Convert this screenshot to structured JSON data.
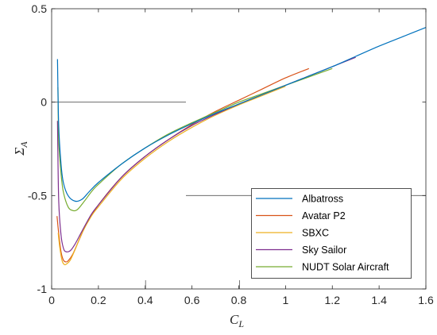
{
  "chart_data": {
    "type": "line",
    "xlabel": "C_L",
    "ylabel": "Σ_A",
    "xlim": [
      0,
      1.6
    ],
    "ylim": [
      -1,
      0.5
    ],
    "xticks": [
      0,
      0.2,
      0.4,
      0.6,
      0.8,
      1,
      1.2,
      1.4,
      1.6
    ],
    "xtick_labels": [
      "0",
      "0.2",
      "0.4",
      "0.6",
      "0.8",
      "1",
      "1.2",
      "1.4",
      "1.6"
    ],
    "yticks": [
      0.5,
      0,
      -0.5,
      -1
    ],
    "ytick_labels": [
      "0.5",
      "0",
      "-0.5",
      "-1"
    ],
    "grid": false,
    "legend_position": "bottom-right",
    "series": [
      {
        "name": "Albatross",
        "color": "#0072BD",
        "points": [
          [
            0.025,
            0.23
          ],
          [
            0.03,
            -0.12
          ],
          [
            0.04,
            -0.33
          ],
          [
            0.05,
            -0.43
          ],
          [
            0.07,
            -0.5
          ],
          [
            0.1,
            -0.53
          ],
          [
            0.13,
            -0.52
          ],
          [
            0.16,
            -0.48
          ],
          [
            0.2,
            -0.43
          ],
          [
            0.3,
            -0.33
          ],
          [
            0.4,
            -0.245
          ],
          [
            0.5,
            -0.175
          ],
          [
            0.6,
            -0.115
          ],
          [
            0.7,
            -0.06
          ],
          [
            0.8,
            -0.01
          ],
          [
            0.9,
            0.04
          ],
          [
            1.0,
            0.09
          ],
          [
            1.1,
            0.14
          ],
          [
            1.2,
            0.19
          ],
          [
            1.3,
            0.245
          ],
          [
            1.4,
            0.3
          ],
          [
            1.5,
            0.35
          ],
          [
            1.6,
            0.4
          ]
        ]
      },
      {
        "name": "Avatar P2",
        "color": "#D95319",
        "points": [
          [
            0.023,
            -0.61
          ],
          [
            0.03,
            -0.7
          ],
          [
            0.04,
            -0.8
          ],
          [
            0.05,
            -0.845
          ],
          [
            0.06,
            -0.855
          ],
          [
            0.07,
            -0.85
          ],
          [
            0.09,
            -0.815
          ],
          [
            0.12,
            -0.73
          ],
          [
            0.15,
            -0.65
          ],
          [
            0.2,
            -0.55
          ],
          [
            0.3,
            -0.4
          ],
          [
            0.4,
            -0.29
          ],
          [
            0.5,
            -0.2
          ],
          [
            0.6,
            -0.12
          ],
          [
            0.7,
            -0.05
          ],
          [
            0.8,
            0.01
          ],
          [
            0.9,
            0.07
          ],
          [
            1.0,
            0.13
          ],
          [
            1.1,
            0.18
          ]
        ]
      },
      {
        "name": "SBXC",
        "color": "#EDB120",
        "points": [
          [
            0.028,
            -0.7
          ],
          [
            0.035,
            -0.78
          ],
          [
            0.045,
            -0.85
          ],
          [
            0.055,
            -0.87
          ],
          [
            0.065,
            -0.865
          ],
          [
            0.08,
            -0.845
          ],
          [
            0.1,
            -0.79
          ],
          [
            0.13,
            -0.7
          ],
          [
            0.17,
            -0.61
          ],
          [
            0.2,
            -0.56
          ],
          [
            0.3,
            -0.41
          ],
          [
            0.4,
            -0.3
          ],
          [
            0.5,
            -0.21
          ],
          [
            0.6,
            -0.135
          ],
          [
            0.7,
            -0.07
          ],
          [
            0.8,
            -0.015
          ],
          [
            0.9,
            0.035
          ],
          [
            1.0,
            0.085
          ]
        ]
      },
      {
        "name": "Sky Sailor",
        "color": "#7E2F8E",
        "points": [
          [
            0.025,
            -0.1
          ],
          [
            0.03,
            -0.52
          ],
          [
            0.04,
            -0.71
          ],
          [
            0.05,
            -0.78
          ],
          [
            0.06,
            -0.8
          ],
          [
            0.08,
            -0.795
          ],
          [
            0.1,
            -0.76
          ],
          [
            0.13,
            -0.69
          ],
          [
            0.17,
            -0.6
          ],
          [
            0.2,
            -0.55
          ],
          [
            0.3,
            -0.4
          ],
          [
            0.4,
            -0.29
          ],
          [
            0.5,
            -0.2
          ],
          [
            0.6,
            -0.125
          ],
          [
            0.7,
            -0.065
          ],
          [
            0.8,
            -0.01
          ],
          [
            0.9,
            0.04
          ],
          [
            1.0,
            0.09
          ],
          [
            1.1,
            0.14
          ],
          [
            1.2,
            0.19
          ],
          [
            1.3,
            0.24
          ]
        ]
      },
      {
        "name": "NUDT Solar Aircraft",
        "color": "#77AC30",
        "points": [
          [
            0.027,
            0.08
          ],
          [
            0.03,
            -0.2
          ],
          [
            0.04,
            -0.38
          ],
          [
            0.05,
            -0.48
          ],
          [
            0.07,
            -0.56
          ],
          [
            0.09,
            -0.58
          ],
          [
            0.11,
            -0.575
          ],
          [
            0.14,
            -0.53
          ],
          [
            0.17,
            -0.48
          ],
          [
            0.2,
            -0.44
          ],
          [
            0.3,
            -0.33
          ],
          [
            0.4,
            -0.245
          ],
          [
            0.5,
            -0.17
          ],
          [
            0.6,
            -0.11
          ],
          [
            0.7,
            -0.055
          ],
          [
            0.8,
            0.0
          ],
          [
            0.9,
            0.045
          ],
          [
            1.0,
            0.09
          ],
          [
            1.1,
            0.135
          ],
          [
            1.2,
            0.18
          ]
        ]
      }
    ]
  }
}
